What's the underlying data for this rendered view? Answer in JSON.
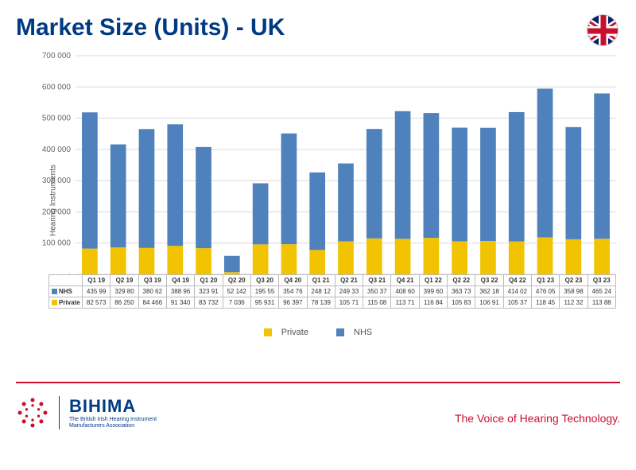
{
  "title": "Market Size (Units) - UK",
  "chart": {
    "type": "stacked-bar",
    "ylabel": "Hearing Instruments",
    "ylim": [
      0,
      700000
    ],
    "ytick_step": 100000,
    "yticks": [
      "-",
      "100 000",
      "200 000",
      "300 000",
      "400 000",
      "500 000",
      "600 000",
      "700 000"
    ],
    "series": [
      {
        "key": "private",
        "label": "Private",
        "color": "#f2c300"
      },
      {
        "key": "nhs",
        "label": "NHS",
        "color": "#4f81bd"
      }
    ],
    "bar_width": 0.55,
    "grid_color": "#d9d9d9",
    "background_color": "#ffffff",
    "categories": [
      "Q1 19",
      "Q2 19",
      "Q3 19",
      "Q4 19",
      "Q1 20",
      "Q2 20",
      "Q3 20",
      "Q4 20",
      "Q1 21",
      "Q2 21",
      "Q3 21",
      "Q4 21",
      "Q1 22",
      "Q2 22",
      "Q3 22",
      "Q4 22",
      "Q1 23",
      "Q2 23",
      "Q3 23"
    ],
    "nhs_values": [
      435990,
      329800,
      380620,
      388960,
      323910,
      52142,
      195550,
      354760,
      248120,
      249330,
      350370,
      408600,
      399600,
      363730,
      362180,
      414020,
      476050,
      358980,
      465240
    ],
    "private_values": [
      82573,
      86250,
      84466,
      91340,
      83732,
      7036,
      95931,
      96397,
      78139,
      105710,
      115080,
      113710,
      116840,
      105830,
      106910,
      105370,
      118450,
      112320,
      113880
    ],
    "nhs_labels": [
      "435 99",
      "329 80",
      "380 62",
      "388 96",
      "323 91",
      "52 142",
      "195 55",
      "354 76",
      "248 12",
      "249 33",
      "350 37",
      "408 60",
      "399 60",
      "363 73",
      "362 18",
      "414 02",
      "476 05",
      "358 98",
      "465 24"
    ],
    "private_labels": [
      "82 573",
      "86 250",
      "84 466",
      "91 340",
      "83 732",
      "7 036",
      "95 931",
      "96 397",
      "78 139",
      "105 71",
      "115 08",
      "113 71",
      "116 84",
      "105 83",
      "106 91",
      "105 37",
      "118 45",
      "112 32",
      "113 88"
    ]
  },
  "table": {
    "row_heads": [
      "NHS",
      "Private"
    ]
  },
  "legend": {
    "private": "Private",
    "nhs": "NHS"
  },
  "footer": {
    "brand": "BIHIMA",
    "sub1": "The British Irish Hearing Instrument",
    "sub2": "Manufacturers Association",
    "tagline": "The Voice of Hearing Technology."
  }
}
